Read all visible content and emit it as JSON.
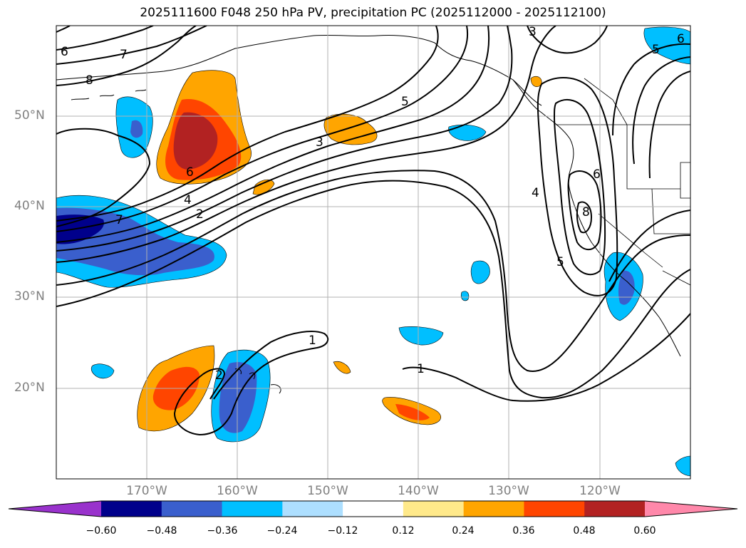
{
  "title": "2025111600 F048 250 hPa PV, precipitation PC (2025112000 - 2025112100)",
  "map": {
    "lat_labels": [
      "50°N",
      "40°N",
      "30°N",
      "20°N"
    ],
    "lon_labels": [
      "170°W",
      "160°W",
      "150°W",
      "140°W",
      "130°W",
      "120°W"
    ],
    "pv_contour_labels": [
      "1",
      "1",
      "2",
      "2",
      "3",
      "4",
      "4",
      "5",
      "5",
      "5",
      "6",
      "6",
      "6",
      "6",
      "7",
      "7",
      "8",
      "8",
      "3"
    ],
    "shading_colors": {
      "neg_060": "#00008B",
      "neg_048": "#3A5FCD",
      "neg_036": "#00BFFF",
      "pos_024": "#FFA500",
      "pos_036": "#FF4500",
      "pos_048": "#B22222"
    }
  },
  "colorbar": {
    "tick_labels": [
      "−0.60",
      "−0.48",
      "−0.36",
      "−0.24",
      "−0.12",
      "0.12",
      "0.24",
      "0.36",
      "0.48",
      "0.60"
    ],
    "colors": [
      "#9932CC",
      "#00008B",
      "#3A5FCD",
      "#00BFFF",
      "#ADDFFF",
      "#FFFFFF",
      "#FFE98A",
      "#FFA500",
      "#FF4500",
      "#B22222",
      "#FF88AA"
    ]
  }
}
